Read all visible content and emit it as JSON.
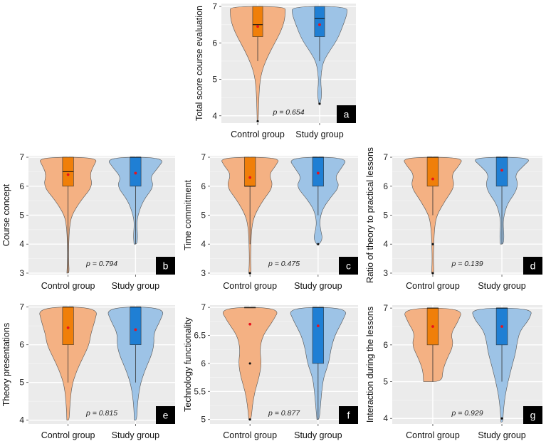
{
  "colors": {
    "control_violin": "#F4B183",
    "control_box": "#F07F09",
    "study_violin": "#9DC3E6",
    "study_box": "#1F7FD4",
    "mean_dot": "#E8141E",
    "panel_bg": "#EBEBEB",
    "grid": "#FFFFFF",
    "letter_bg": "#000000"
  },
  "chart_data": [
    {
      "type": "violin",
      "panel": "a",
      "ylabel": "Total score course evaluation",
      "categories": [
        "Control group",
        "Study group"
      ],
      "ylim": [
        3.8,
        7.08
      ],
      "yticks": [
        4,
        5,
        6,
        7
      ],
      "p_value": "p = 0.654",
      "series": [
        {
          "name": "Control group",
          "box": {
            "q1": 6.17,
            "median": 6.5,
            "q3": 7,
            "whisker_low": 5.5,
            "whisker_high": 7
          },
          "mean": 6.45,
          "outliers": [
            3.85
          ],
          "density": [
            [
              3.85,
              0.02
            ],
            [
              4.2,
              0.03
            ],
            [
              4.8,
              0.06
            ],
            [
              5.2,
              0.14
            ],
            [
              5.6,
              0.34
            ],
            [
              6.0,
              0.62
            ],
            [
              6.3,
              0.83
            ],
            [
              6.6,
              0.97
            ],
            [
              6.85,
              1.0
            ],
            [
              7.0,
              0.99
            ]
          ]
        },
        {
          "name": "Study group",
          "box": {
            "q1": 6.17,
            "median": 6.67,
            "q3": 7,
            "whisker_low": 5.5,
            "whisker_high": 7
          },
          "mean": 6.5,
          "outliers": [
            4.33
          ],
          "density": [
            [
              4.33,
              0.03
            ],
            [
              4.6,
              0.08
            ],
            [
              4.9,
              0.04
            ],
            [
              5.2,
              0.06
            ],
            [
              5.5,
              0.14
            ],
            [
              5.8,
              0.38
            ],
            [
              6.1,
              0.65
            ],
            [
              6.5,
              0.86
            ],
            [
              6.8,
              1.0
            ],
            [
              7.0,
              0.99
            ]
          ]
        }
      ]
    },
    {
      "type": "violin",
      "panel": "b",
      "ylabel": "Course concept",
      "categories": [
        "Control group",
        "Study group"
      ],
      "ylim": [
        2.95,
        7.05
      ],
      "yticks": [
        3,
        4,
        5,
        6,
        7
      ],
      "p_value": "p = 0.794",
      "series": [
        {
          "name": "Control group",
          "box": {
            "q1": 6,
            "median": 6.5,
            "q3": 7,
            "whisker_low": 3,
            "whisker_high": 7
          },
          "mean": 6.4,
          "outliers": [],
          "density": [
            [
              3.0,
              0.04
            ],
            [
              3.4,
              0.02
            ],
            [
              4.0,
              0.02
            ],
            [
              4.6,
              0.05
            ],
            [
              5.0,
              0.12
            ],
            [
              5.5,
              0.42
            ],
            [
              6.0,
              0.82
            ],
            [
              6.4,
              0.72
            ],
            [
              6.7,
              0.85
            ],
            [
              7.0,
              1.0
            ]
          ]
        },
        {
          "name": "Study group",
          "box": {
            "q1": 6,
            "median": 7,
            "q3": 7,
            "whisker_low": 4,
            "whisker_high": 7
          },
          "mean": 6.45,
          "outliers": [],
          "density": [
            [
              4.0,
              0.05
            ],
            [
              4.3,
              0.07
            ],
            [
              4.7,
              0.04
            ],
            [
              5.0,
              0.08
            ],
            [
              5.5,
              0.25
            ],
            [
              6.0,
              0.62
            ],
            [
              6.3,
              0.48
            ],
            [
              6.6,
              0.72
            ],
            [
              7.0,
              1.0
            ]
          ]
        }
      ]
    },
    {
      "type": "violin",
      "panel": "c",
      "ylabel": "Time commitment",
      "categories": [
        "Control group",
        "Study group"
      ],
      "ylim": [
        2.95,
        7.05
      ],
      "yticks": [
        3,
        4,
        5,
        6,
        7
      ],
      "p_value": "p = 0.475",
      "series": [
        {
          "name": "Control group",
          "box": {
            "q1": 6,
            "median": 6,
            "q3": 7,
            "whisker_low": 4,
            "whisker_high": 7
          },
          "mean": 6.3,
          "outliers": [
            3
          ],
          "density": [
            [
              3.0,
              0.04
            ],
            [
              3.4,
              0.02
            ],
            [
              4.0,
              0.03
            ],
            [
              4.6,
              0.06
            ],
            [
              5.0,
              0.15
            ],
            [
              5.5,
              0.42
            ],
            [
              6.0,
              0.78
            ],
            [
              6.4,
              0.62
            ],
            [
              6.7,
              0.85
            ],
            [
              7.0,
              1.0
            ]
          ]
        },
        {
          "name": "Study group",
          "box": {
            "q1": 6,
            "median": 7,
            "q3": 7,
            "whisker_low": 5,
            "whisker_high": 7
          },
          "mean": 6.45,
          "outliers": [
            4
          ],
          "density": [
            [
              4.0,
              0.05
            ],
            [
              4.2,
              0.15
            ],
            [
              4.5,
              0.08
            ],
            [
              4.8,
              0.05
            ],
            [
              5.2,
              0.14
            ],
            [
              5.6,
              0.4
            ],
            [
              6.0,
              0.72
            ],
            [
              6.3,
              0.55
            ],
            [
              6.6,
              0.75
            ],
            [
              7.0,
              1.0
            ]
          ]
        }
      ]
    },
    {
      "type": "violin",
      "panel": "d",
      "ylabel": "Ratio of theory to practical lessons",
      "categories": [
        "Control group",
        "Study group"
      ],
      "ylim": [
        2.95,
        7.05
      ],
      "yticks": [
        3,
        4,
        5,
        6,
        7
      ],
      "p_value": "p = 0.139",
      "series": [
        {
          "name": "Control group",
          "box": {
            "q1": 6,
            "median": 7,
            "q3": 7,
            "whisker_low": 5,
            "whisker_high": 7
          },
          "mean": 6.25,
          "outliers": [
            4,
            3
          ],
          "density": [
            [
              3.0,
              0.04
            ],
            [
              3.4,
              0.02
            ],
            [
              4.0,
              0.03
            ],
            [
              4.6,
              0.06
            ],
            [
              5.0,
              0.13
            ],
            [
              5.5,
              0.4
            ],
            [
              6.0,
              0.72
            ],
            [
              6.4,
              0.6
            ],
            [
              6.7,
              0.85
            ],
            [
              7.0,
              1.0
            ]
          ]
        },
        {
          "name": "Study group",
          "box": {
            "q1": 6,
            "median": 7,
            "q3": 7,
            "whisker_low": 4,
            "whisker_high": 7
          },
          "mean": 6.55,
          "outliers": [],
          "density": [
            [
              4.0,
              0.05
            ],
            [
              4.3,
              0.07
            ],
            [
              4.7,
              0.04
            ],
            [
              5.0,
              0.07
            ],
            [
              5.4,
              0.18
            ],
            [
              5.8,
              0.45
            ],
            [
              6.1,
              0.52
            ],
            [
              6.4,
              0.42
            ],
            [
              6.7,
              0.7
            ],
            [
              7.0,
              1.0
            ]
          ]
        }
      ]
    },
    {
      "type": "violin",
      "panel": "e",
      "ylabel": "Theory presentations",
      "categories": [
        "Control group",
        "Study group"
      ],
      "ylim": [
        3.9,
        7.05
      ],
      "yticks": [
        4,
        5,
        6,
        7
      ],
      "p_value": "p = 0.815",
      "series": [
        {
          "name": "Control group",
          "box": {
            "q1": 6,
            "median": 7,
            "q3": 7,
            "whisker_low": 5,
            "whisker_high": 7
          },
          "mean": 6.45,
          "outliers": [],
          "density": [
            [
              4.0,
              0.04
            ],
            [
              4.4,
              0.06
            ],
            [
              4.9,
              0.12
            ],
            [
              5.3,
              0.28
            ],
            [
              5.7,
              0.52
            ],
            [
              6.0,
              0.7
            ],
            [
              6.3,
              0.76
            ],
            [
              6.6,
              0.88
            ],
            [
              7.0,
              1.0
            ]
          ]
        },
        {
          "name": "Study group",
          "box": {
            "q1": 6,
            "median": 7,
            "q3": 7,
            "whisker_low": 5,
            "whisker_high": 7
          },
          "mean": 6.4,
          "outliers": [],
          "density": [
            [
              4.0,
              0.04
            ],
            [
              4.4,
              0.06
            ],
            [
              4.9,
              0.14
            ],
            [
              5.3,
              0.3
            ],
            [
              5.7,
              0.52
            ],
            [
              6.0,
              0.62
            ],
            [
              6.3,
              0.6
            ],
            [
              6.6,
              0.8
            ],
            [
              7.0,
              1.0
            ]
          ]
        }
      ]
    },
    {
      "type": "violin",
      "panel": "f",
      "ylabel": "Technology functionality",
      "categories": [
        "Control group",
        "Study group"
      ],
      "ylim": [
        4.92,
        7.04
      ],
      "yticks": [
        5,
        5.5,
        6,
        6.5,
        7
      ],
      "p_value": "p = 0.877",
      "series": [
        {
          "name": "Control group",
          "box": {
            "q1": 7,
            "median": 7,
            "q3": 7,
            "whisker_low": 7,
            "whisker_high": 7
          },
          "mean": 6.7,
          "outliers": [
            6,
            5
          ],
          "density": [
            [
              5.0,
              0.04
            ],
            [
              5.25,
              0.08
            ],
            [
              5.5,
              0.16
            ],
            [
              5.75,
              0.3
            ],
            [
              6.0,
              0.38
            ],
            [
              6.25,
              0.32
            ],
            [
              6.5,
              0.42
            ],
            [
              6.75,
              0.75
            ],
            [
              7.0,
              1.0
            ]
          ]
        },
        {
          "name": "Study group",
          "box": {
            "q1": 6,
            "median": 7,
            "q3": 7,
            "whisker_low": 5,
            "whisker_high": 7
          },
          "mean": 6.67,
          "outliers": [],
          "density": [
            [
              5.0,
              0.04
            ],
            [
              5.25,
              0.08
            ],
            [
              5.5,
              0.12
            ],
            [
              5.75,
              0.18
            ],
            [
              6.0,
              0.35
            ],
            [
              6.25,
              0.42
            ],
            [
              6.5,
              0.55
            ],
            [
              6.75,
              0.8
            ],
            [
              7.0,
              1.0
            ]
          ]
        }
      ]
    },
    {
      "type": "violin",
      "panel": "g",
      "ylabel": "Interaction during the lessons",
      "categories": [
        "Control group",
        "Study group"
      ],
      "ylim": [
        3.85,
        7.08
      ],
      "yticks": [
        4,
        5,
        6,
        7
      ],
      "p_value": "p = 0.929",
      "series": [
        {
          "name": "Control group",
          "box": {
            "q1": 6,
            "median": 7,
            "q3": 7,
            "whisker_low": 5,
            "whisker_high": 7
          },
          "mean": 6.5,
          "outliers": [],
          "density": [
            [
              5.0,
              0.3
            ],
            [
              5.3,
              0.32
            ],
            [
              5.6,
              0.45
            ],
            [
              6.0,
              0.68
            ],
            [
              6.3,
              0.58
            ],
            [
              6.6,
              0.8
            ],
            [
              7.0,
              1.0
            ]
          ]
        },
        {
          "name": "Study group",
          "box": {
            "q1": 6,
            "median": 7,
            "q3": 7,
            "whisker_low": 5,
            "whisker_high": 7
          },
          "mean": 6.5,
          "outliers": [
            4
          ],
          "density": [
            [
              3.9,
              0.03
            ],
            [
              4.2,
              0.05
            ],
            [
              4.6,
              0.1
            ],
            [
              5.0,
              0.2
            ],
            [
              5.4,
              0.32
            ],
            [
              5.8,
              0.45
            ],
            [
              6.1,
              0.5
            ],
            [
              6.4,
              0.6
            ],
            [
              6.7,
              0.9
            ],
            [
              7.0,
              1.0
            ]
          ]
        }
      ]
    }
  ]
}
